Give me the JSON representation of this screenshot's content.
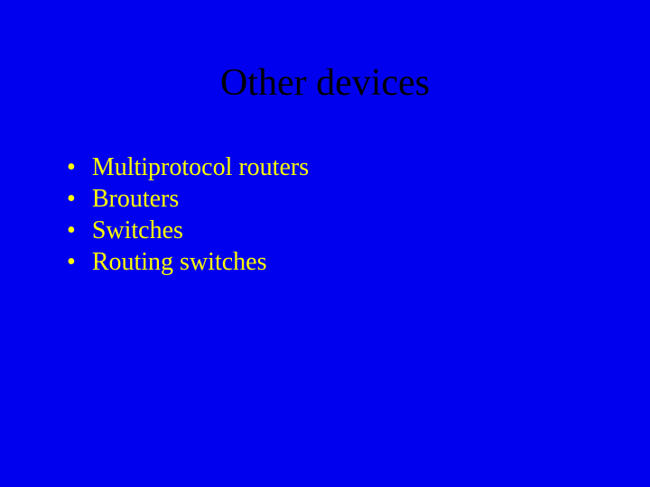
{
  "slide": {
    "title": "Other devices",
    "title_color": "#000000",
    "title_fontsize": 42,
    "background_color": "#0000ee",
    "bullet_color": "#ffff00",
    "bullet_fontsize": 28,
    "bullets": [
      "Multiprotocol routers",
      "Brouters",
      "Switches",
      "Routing switches"
    ]
  }
}
